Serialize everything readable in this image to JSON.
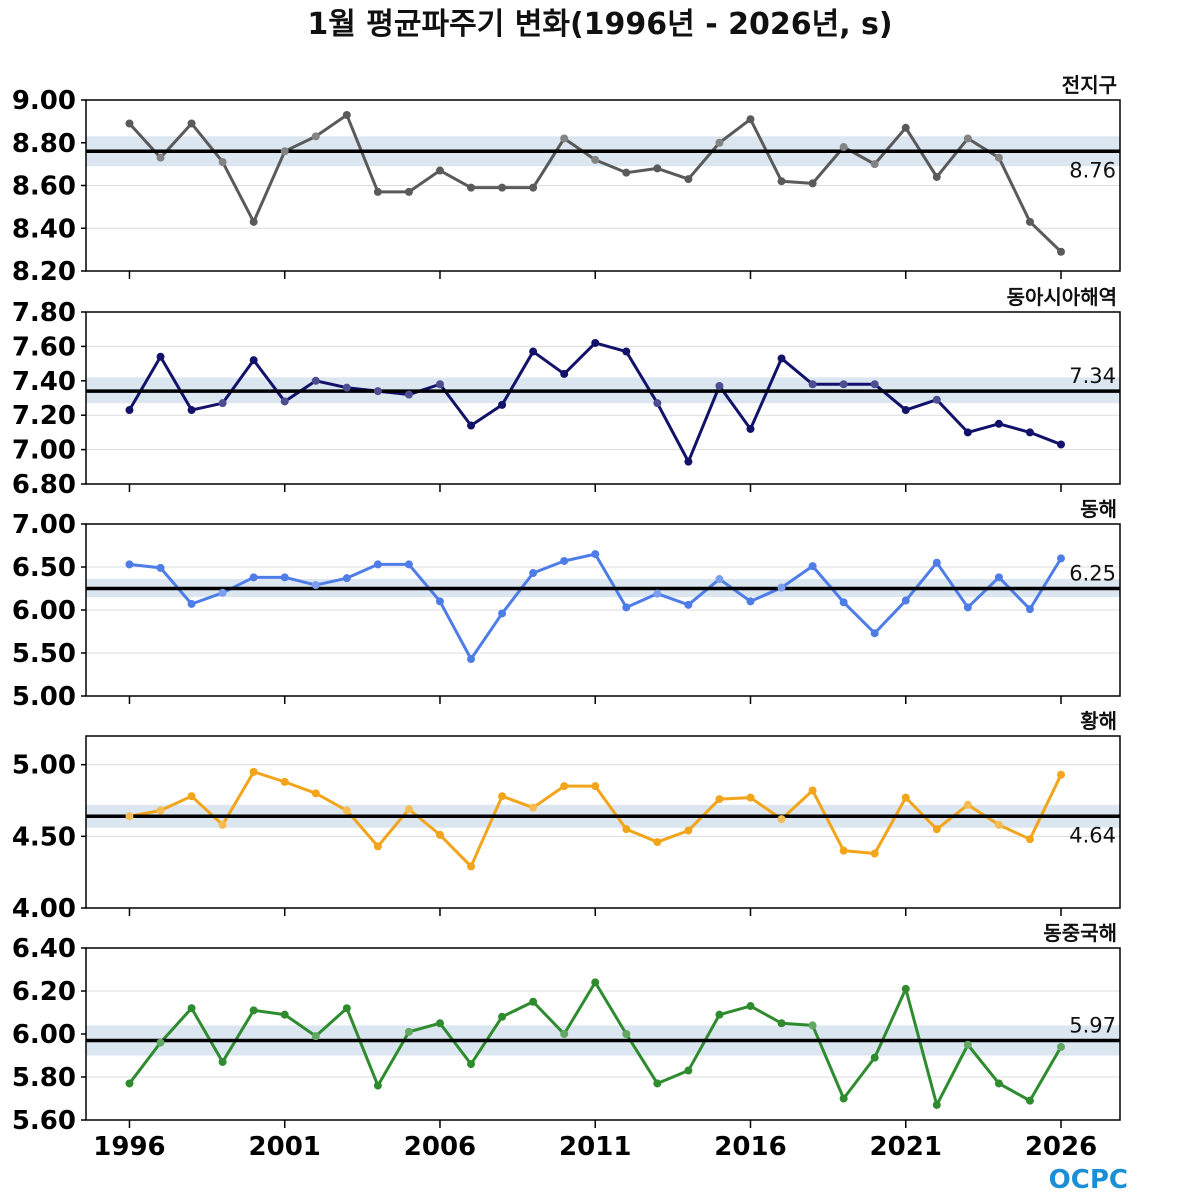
{
  "chart_data": {
    "type": "line",
    "title": "1월 평균파주기 변화(1996년 - 2026년, s)",
    "x": [
      1996,
      1997,
      1998,
      1999,
      2000,
      2001,
      2002,
      2003,
      2004,
      2005,
      2006,
      2007,
      2008,
      2009,
      2010,
      2011,
      2012,
      2013,
      2014,
      2015,
      2016,
      2017,
      2018,
      2019,
      2020,
      2021,
      2022,
      2023,
      2024,
      2025,
      2026
    ],
    "xticks": [
      "1996",
      "2001",
      "2006",
      "2011",
      "2016",
      "2021",
      "2026"
    ],
    "xlim": [
      1994.6,
      2027.9
    ],
    "grid": "horizontal",
    "panels": [
      {
        "label": "전지구",
        "color": "#5a5a5a",
        "ylim": [
          8.2,
          9.0
        ],
        "yticks": [
          "8.20",
          "8.40",
          "8.60",
          "8.80",
          "9.00"
        ],
        "mean": 8.76,
        "mean_label": "8.76",
        "band": [
          8.69,
          8.83
        ],
        "values": [
          8.89,
          8.73,
          8.89,
          8.71,
          8.43,
          8.76,
          8.83,
          8.93,
          8.57,
          8.57,
          8.67,
          8.59,
          8.59,
          8.59,
          8.82,
          8.72,
          8.66,
          8.68,
          8.63,
          8.8,
          8.91,
          8.62,
          8.61,
          8.78,
          8.7,
          8.87,
          8.64,
          8.82,
          8.73,
          8.43,
          8.29
        ]
      },
      {
        "label": "동아시아해역",
        "color": "#12126b",
        "ylim": [
          6.8,
          7.8
        ],
        "yticks": [
          "6.80",
          "7.00",
          "7.20",
          "7.40",
          "7.60",
          "7.80"
        ],
        "mean": 7.34,
        "mean_label": "7.34",
        "band": [
          7.27,
          7.42
        ],
        "values": [
          7.23,
          7.54,
          7.23,
          7.27,
          7.52,
          7.28,
          7.4,
          7.36,
          7.34,
          7.32,
          7.38,
          7.14,
          7.26,
          7.57,
          7.44,
          7.62,
          7.57,
          7.27,
          6.93,
          7.37,
          7.12,
          7.53,
          7.38,
          7.38,
          7.38,
          7.23,
          7.29,
          7.1,
          7.15,
          7.1,
          7.03
        ]
      },
      {
        "label": "동해",
        "color": "#4f7de8",
        "ylim": [
          5.0,
          7.0
        ],
        "yticks": [
          "5.00",
          "5.50",
          "6.00",
          "6.50",
          "7.00"
        ],
        "mean": 6.25,
        "mean_label": "6.25",
        "band": [
          6.15,
          6.36
        ],
        "values": [
          6.53,
          6.49,
          6.07,
          6.2,
          6.38,
          6.38,
          6.29,
          6.37,
          6.53,
          6.53,
          6.1,
          5.43,
          5.96,
          6.43,
          6.57,
          6.65,
          6.03,
          6.19,
          6.06,
          6.36,
          6.1,
          6.26,
          6.51,
          6.09,
          5.73,
          6.11,
          6.55,
          6.03,
          6.38,
          6.01,
          6.6
        ]
      },
      {
        "label": "황해",
        "color": "#f2a51a",
        "ylim": [
          4.0,
          5.2
        ],
        "yticks": [
          "4.00",
          "4.50",
          "5.00"
        ],
        "mean": 4.64,
        "mean_label": "4.64",
        "band": [
          4.56,
          4.72
        ],
        "values": [
          4.64,
          4.68,
          4.78,
          4.58,
          4.95,
          4.88,
          4.8,
          4.68,
          4.43,
          4.69,
          4.51,
          4.29,
          4.78,
          4.7,
          4.85,
          4.85,
          4.55,
          4.46,
          4.54,
          4.76,
          4.77,
          4.62,
          4.82,
          4.4,
          4.38,
          4.77,
          4.55,
          4.72,
          4.58,
          4.48,
          4.93
        ]
      },
      {
        "label": "동중국해",
        "color": "#2e8b2e",
        "ylim": [
          5.6,
          6.4
        ],
        "yticks": [
          "5.60",
          "5.80",
          "6.00",
          "6.20",
          "6.40"
        ],
        "mean": 5.97,
        "mean_label": "5.97",
        "band": [
          5.9,
          6.04
        ],
        "values": [
          5.77,
          5.96,
          6.12,
          5.87,
          6.11,
          6.09,
          5.99,
          6.12,
          5.76,
          6.01,
          6.05,
          5.86,
          6.08,
          6.15,
          6.0,
          6.24,
          6.0,
          5.77,
          5.83,
          6.09,
          6.13,
          6.05,
          6.04,
          5.7,
          5.89,
          6.21,
          5.67,
          5.95,
          5.77,
          5.69,
          5.94
        ]
      }
    ]
  },
  "logo": {
    "text": "OCPC",
    "color": "#1b8fd6"
  }
}
